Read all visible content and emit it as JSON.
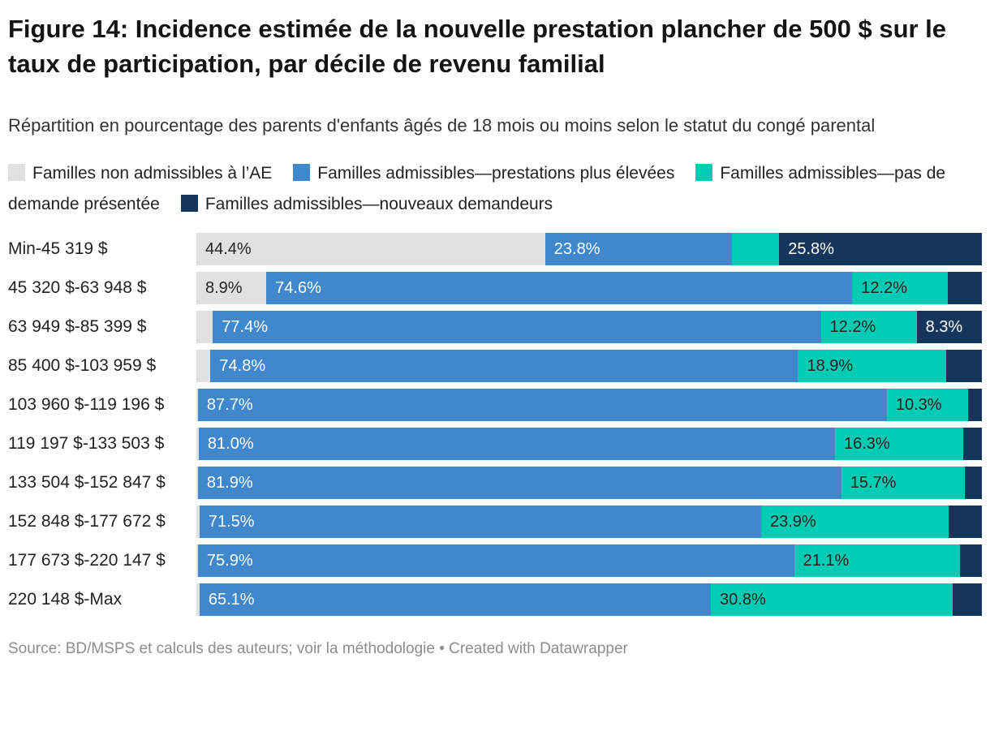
{
  "header": {
    "title": "Figure 14: Incidence estimée de la nouvelle prestation plancher de 500 $ sur le taux de participation, par décile de revenu familial",
    "subtitle": "Répartition en pourcentage des parents d'enfants âgés de 18 mois ou moins selon le statut du congé parental"
  },
  "colors": {
    "not_eligible_gray": "#e1e1e1",
    "higher_benefits_blue": "#3f88ce",
    "no_claim_teal": "#00cbb3",
    "new_claimants_navy": "#14365c",
    "label_dark": "#222222",
    "label_light": "#ffffff"
  },
  "chart_data": {
    "type": "bar",
    "orientation": "horizontal",
    "stacked": true,
    "unit": "%",
    "xlim": [
      0,
      100
    ],
    "grid": false,
    "legend_position": "top",
    "categories": [
      "Min-45 319 $",
      "45 320 $-63 948 $",
      "63 949 $-85 399 $",
      "85 400 $-103 959 $",
      "103 960 $-119 196 $",
      "119 197 $-133 503 $",
      "133 504 $-152 847 $",
      "152 848 $-177 672 $",
      "177 673 $-220 147 $",
      "220 148 $-Max"
    ],
    "series": [
      {
        "name": "Familles non admissibles à l’AE",
        "color": "#e1e1e1",
        "label_color": "#222222",
        "values": [
          44.4,
          8.9,
          2.1,
          1.8,
          0.2,
          0.3,
          0.2,
          0.4,
          0.2,
          0.4
        ]
      },
      {
        "name": "Familles admissibles—prestations plus élevées",
        "color": "#3f88ce",
        "label_color": "#ffffff",
        "values": [
          23.8,
          74.6,
          77.4,
          74.8,
          87.7,
          81.0,
          81.9,
          71.5,
          75.9,
          65.1
        ]
      },
      {
        "name": "Familles admissibles—pas de demande présentée",
        "color": "#00cbb3",
        "label_color": "#222222",
        "values": [
          6.0,
          12.2,
          12.2,
          18.9,
          10.3,
          16.3,
          15.7,
          23.9,
          21.1,
          30.8
        ]
      },
      {
        "name": "Familles admissibles—nouveaux demandeurs",
        "color": "#14365c",
        "label_color": "#ffffff",
        "values": [
          25.8,
          4.3,
          8.3,
          4.5,
          1.8,
          2.4,
          2.2,
          4.2,
          2.8,
          3.7
        ]
      }
    ],
    "visible_labels": [
      [
        "44.4%",
        "23.8%",
        "",
        "25.8%"
      ],
      [
        "8.9%",
        "74.6%",
        "12.2%",
        ""
      ],
      [
        "",
        "77.4%",
        "12.2%",
        "8.3%"
      ],
      [
        "",
        "74.8%",
        "18.9%",
        ""
      ],
      [
        "",
        "87.7%",
        "10.3%",
        ""
      ],
      [
        "",
        "81.0%",
        "16.3%",
        ""
      ],
      [
        "",
        "81.9%",
        "15.7%",
        ""
      ],
      [
        "",
        "71.5%",
        "23.9%",
        ""
      ],
      [
        "",
        "75.9%",
        "21.1%",
        ""
      ],
      [
        "",
        "65.1%",
        "30.8%",
        ""
      ]
    ]
  },
  "footer": {
    "text": "Source: BD/MSPS et calculs des auteurs; voir la méthodologie • Created with Datawrapper"
  }
}
